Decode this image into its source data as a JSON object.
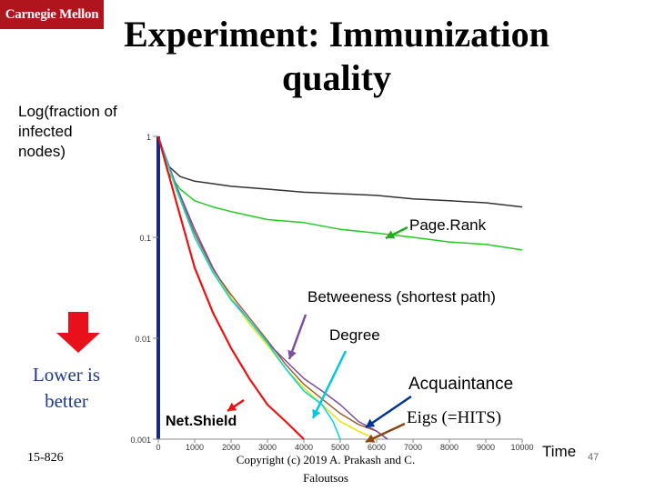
{
  "header": {
    "logo_text": "Carnegie Mellon",
    "title_line1": "Experiment: Immunization",
    "title_line2": "quality"
  },
  "side": {
    "lower_line1": "Lower is",
    "lower_line2": "better",
    "course": "15-826"
  },
  "footer": {
    "copyright_line1": "Copyright (c) 2019 A. Prakash and C.",
    "copyright_line2": "Faloutsos",
    "page": "47"
  },
  "chart_data": {
    "type": "line",
    "ylabel_lines": [
      "Log(fraction of",
      "infected",
      "nodes)"
    ],
    "xlabel": "Time",
    "xlim": [
      0,
      10000
    ],
    "ylim": [
      0.001,
      1
    ],
    "yscale": "log",
    "x_ticks": [
      "0",
      "1000",
      "2000",
      "3000",
      "4000",
      "5000",
      "6000",
      "7000",
      "8000",
      "9000",
      "10000"
    ],
    "y_ticks": [
      {
        "label": "1",
        "value": 1
      },
      {
        "label": "0.1",
        "value": 0.1
      },
      {
        "label": "0.01",
        "value": 0.01
      },
      {
        "label": "0.001",
        "value": 0.001
      }
    ],
    "series": [
      {
        "name": "Eigs (=HITS)",
        "color": "#333333",
        "points": [
          [
            0,
            1
          ],
          [
            250,
            0.52
          ],
          [
            600,
            0.4
          ],
          [
            1000,
            0.36
          ],
          [
            1500,
            0.34
          ],
          [
            2000,
            0.32
          ],
          [
            3000,
            0.3
          ],
          [
            4000,
            0.28
          ],
          [
            5000,
            0.27
          ],
          [
            6000,
            0.26
          ],
          [
            7000,
            0.24
          ],
          [
            8000,
            0.23
          ],
          [
            9000,
            0.22
          ],
          [
            10000,
            0.2
          ]
        ]
      },
      {
        "name": "Page.Rank",
        "color": "#22cc22",
        "points": [
          [
            0,
            1
          ],
          [
            250,
            0.45
          ],
          [
            600,
            0.3
          ],
          [
            1000,
            0.23
          ],
          [
            1500,
            0.2
          ],
          [
            2000,
            0.18
          ],
          [
            3000,
            0.15
          ],
          [
            4000,
            0.14
          ],
          [
            5000,
            0.12
          ],
          [
            6000,
            0.11
          ],
          [
            7000,
            0.1
          ],
          [
            8000,
            0.09
          ],
          [
            9000,
            0.085
          ],
          [
            10000,
            0.075
          ]
        ]
      },
      {
        "name": "Betweeness (shortest path)",
        "color": "#7b4ea3",
        "points": [
          [
            0,
            1
          ],
          [
            500,
            0.32
          ],
          [
            1000,
            0.12
          ],
          [
            1500,
            0.05
          ],
          [
            2000,
            0.025
          ],
          [
            2500,
            0.015
          ],
          [
            3000,
            0.009
          ],
          [
            3500,
            0.006
          ],
          [
            4000,
            0.004
          ],
          [
            4500,
            0.003
          ],
          [
            5000,
            0.0022
          ],
          [
            5500,
            0.0015
          ],
          [
            6000,
            0.0012
          ],
          [
            6300,
            0.001
          ]
        ]
      },
      {
        "name": "Degree",
        "color": "#00d4e8",
        "points": [
          [
            0,
            1
          ],
          [
            500,
            0.3
          ],
          [
            1000,
            0.1
          ],
          [
            1500,
            0.045
          ],
          [
            2000,
            0.024
          ],
          [
            2500,
            0.015
          ],
          [
            3000,
            0.009
          ],
          [
            3500,
            0.005
          ],
          [
            4000,
            0.003
          ],
          [
            4500,
            0.0022
          ],
          [
            4800,
            0.0015
          ],
          [
            5000,
            0.001
          ]
        ]
      },
      {
        "name": "Acquaintance",
        "color": "#e6e600",
        "points": [
          [
            0,
            1
          ],
          [
            500,
            0.29
          ],
          [
            1000,
            0.1
          ],
          [
            1500,
            0.046
          ],
          [
            2000,
            0.025
          ],
          [
            2500,
            0.014
          ],
          [
            3000,
            0.0085
          ],
          [
            3500,
            0.005
          ],
          [
            4000,
            0.0032
          ],
          [
            4500,
            0.0022
          ],
          [
            5000,
            0.0015
          ],
          [
            5500,
            0.0012
          ],
          [
            6000,
            0.001
          ]
        ]
      },
      {
        "name": "",
        "color": "#a06030",
        "points": [
          [
            0,
            1
          ],
          [
            500,
            0.3
          ],
          [
            1000,
            0.11
          ],
          [
            1500,
            0.048
          ],
          [
            2000,
            0.027
          ],
          [
            2500,
            0.016
          ],
          [
            3000,
            0.0095
          ],
          [
            3500,
            0.0055
          ],
          [
            4000,
            0.0035
          ],
          [
            4500,
            0.0025
          ],
          [
            5000,
            0.0018
          ],
          [
            5500,
            0.0014
          ],
          [
            6000,
            0.0012
          ],
          [
            6300,
            0.001
          ]
        ]
      },
      {
        "name": "Net.Shield",
        "color": "#ee1111",
        "points": [
          [
            0,
            1
          ],
          [
            500,
            0.22
          ],
          [
            1000,
            0.05
          ],
          [
            1500,
            0.018
          ],
          [
            2000,
            0.008
          ],
          [
            2500,
            0.004
          ],
          [
            3000,
            0.0022
          ],
          [
            3500,
            0.0015
          ],
          [
            4000,
            0.001
          ]
        ]
      }
    ],
    "annotations": [
      {
        "text": "Page.Rank",
        "color": "#000000",
        "arrow_color": "#22aa22"
      },
      {
        "text": "Betweeness (shortest path)",
        "color": "#000000",
        "arrow_color": "#7b4ea3"
      },
      {
        "text": "Degree",
        "color": "#000000",
        "arrow_color": "#00c8e0"
      },
      {
        "text": "Acquaintance",
        "color": "#000000",
        "arrow_color": "#003399"
      },
      {
        "text": "Eigs (=HITS)",
        "color": "#000000",
        "arrow_color": "#8b4513"
      },
      {
        "text": "Net.Shield",
        "color": "#000000",
        "arrow_color": "#ee1111"
      }
    ],
    "grid": false
  }
}
